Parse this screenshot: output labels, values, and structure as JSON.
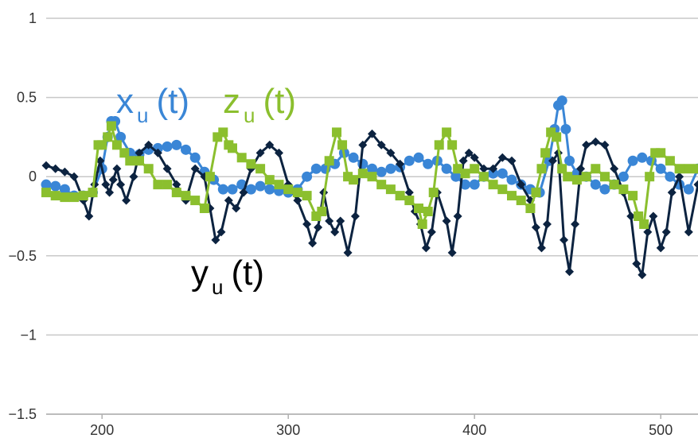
{
  "chart_data": {
    "type": "line",
    "xlim": [
      170,
      520
    ],
    "ylim": [
      -1.5,
      1
    ],
    "x_ticks": [
      200,
      300,
      400,
      500
    ],
    "y_ticks": [
      1,
      0.5,
      0,
      -0.5,
      -1,
      -1.5
    ],
    "x_tick_labels": [
      "200",
      "300",
      "400",
      "500"
    ],
    "y_tick_labels": [
      "1",
      "0.5",
      "0",
      "−0.5",
      "−1",
      "−1.5"
    ],
    "grid": "horizontal",
    "series": [
      {
        "name_main": "x",
        "name_sub": "u",
        "name_tail": "(t)",
        "color": "#3a86d6",
        "marker": "circle",
        "x": [
          170,
          175,
          180,
          185,
          190,
          195,
          200,
          203,
          205,
          207,
          210,
          215,
          220,
          225,
          230,
          235,
          240,
          245,
          250,
          255,
          260,
          265,
          270,
          275,
          280,
          285,
          290,
          295,
          300,
          305,
          310,
          315,
          320,
          325,
          330,
          335,
          340,
          345,
          350,
          355,
          360,
          365,
          370,
          375,
          380,
          385,
          390,
          395,
          400,
          405,
          410,
          415,
          420,
          425,
          430,
          435,
          440,
          443,
          445,
          447,
          449,
          451,
          455,
          460,
          465,
          470,
          475,
          480,
          485,
          490,
          495,
          500,
          505,
          510,
          515,
          520
        ],
        "y": [
          -0.05,
          -0.06,
          -0.08,
          -0.12,
          -0.12,
          -0.1,
          0.05,
          0.25,
          0.35,
          0.35,
          0.25,
          0.15,
          0.14,
          0.17,
          0.18,
          0.19,
          0.2,
          0.17,
          0.12,
          0.03,
          -0.02,
          -0.08,
          -0.08,
          -0.05,
          -0.08,
          -0.06,
          -0.08,
          -0.09,
          -0.1,
          -0.08,
          0.0,
          0.05,
          0.05,
          0.08,
          0.15,
          0.12,
          0.08,
          0.05,
          0.03,
          0.05,
          0.06,
          0.1,
          0.12,
          0.08,
          0.1,
          0.05,
          0.0,
          -0.05,
          -0.05,
          0.0,
          0.02,
          0.02,
          -0.02,
          -0.05,
          -0.08,
          -0.1,
          0.1,
          0.3,
          0.45,
          0.48,
          0.3,
          0.1,
          0.02,
          0.0,
          -0.05,
          -0.08,
          -0.05,
          0.0,
          0.1,
          0.12,
          0.1,
          0.05,
          0.0,
          -0.05,
          -0.08,
          0.05
        ]
      },
      {
        "name_main": "y",
        "name_sub": "u",
        "name_tail": "(t)",
        "color": "#0c2340",
        "marker": "diamond",
        "x": [
          170,
          175,
          180,
          185,
          190,
          193,
          196,
          199,
          202,
          204,
          206,
          208,
          210,
          213,
          217,
          220,
          225,
          230,
          235,
          240,
          245,
          250,
          255,
          258,
          261,
          264,
          268,
          272,
          276,
          280,
          285,
          290,
          295,
          300,
          305,
          310,
          313,
          316,
          319,
          322,
          325,
          328,
          332,
          336,
          340,
          345,
          350,
          355,
          360,
          365,
          368,
          371,
          374,
          377,
          380,
          385,
          388,
          391,
          394,
          397,
          400,
          405,
          410,
          415,
          420,
          425,
          430,
          433,
          436,
          439,
          442,
          445,
          448,
          451,
          454,
          457,
          460,
          465,
          470,
          475,
          480,
          484,
          487,
          490,
          493,
          496,
          500,
          503,
          506,
          510,
          515,
          520
        ],
        "y": [
          0.07,
          0.05,
          0.03,
          0.0,
          -0.15,
          -0.25,
          -0.05,
          0.1,
          -0.05,
          -0.1,
          -0.02,
          0.05,
          -0.05,
          -0.15,
          0.0,
          0.15,
          0.2,
          0.15,
          0.05,
          -0.05,
          -0.15,
          0.05,
          0.0,
          -0.2,
          -0.4,
          -0.35,
          -0.15,
          -0.2,
          -0.1,
          0.05,
          0.15,
          0.2,
          0.15,
          -0.05,
          -0.15,
          -0.3,
          -0.42,
          -0.32,
          -0.1,
          -0.28,
          -0.35,
          -0.28,
          -0.48,
          -0.25,
          0.2,
          0.27,
          0.2,
          0.15,
          0.08,
          -0.1,
          -0.22,
          -0.3,
          -0.45,
          -0.35,
          -0.1,
          -0.28,
          -0.48,
          -0.25,
          0.1,
          0.15,
          0.12,
          0.05,
          0.05,
          0.12,
          0.1,
          -0.05,
          -0.15,
          -0.32,
          -0.45,
          -0.3,
          0.1,
          0.15,
          -0.4,
          -0.6,
          -0.3,
          0.05,
          0.2,
          0.22,
          0.2,
          0.05,
          -0.1,
          -0.25,
          -0.55,
          -0.62,
          -0.35,
          -0.25,
          -0.45,
          -0.35,
          -0.1,
          0.0,
          -0.35,
          -0.05
        ]
      },
      {
        "name_main": "z",
        "name_sub": "u",
        "name_tail": "(t)",
        "color": "#8bbf2e",
        "marker": "square",
        "x": [
          170,
          175,
          180,
          185,
          190,
          195,
          198,
          200,
          203,
          205,
          208,
          212,
          215,
          220,
          225,
          230,
          235,
          240,
          245,
          250,
          255,
          258,
          262,
          265,
          268,
          270,
          275,
          280,
          285,
          290,
          295,
          300,
          305,
          310,
          315,
          318,
          322,
          326,
          329,
          332,
          335,
          340,
          345,
          350,
          355,
          360,
          365,
          370,
          372,
          375,
          378,
          381,
          385,
          388,
          391,
          395,
          400,
          405,
          410,
          415,
          420,
          425,
          430,
          433,
          436,
          438,
          441,
          444,
          447,
          450,
          455,
          460,
          465,
          470,
          475,
          480,
          485,
          488,
          491,
          494,
          497,
          500,
          505,
          510,
          515,
          520
        ],
        "y": [
          -0.1,
          -0.12,
          -0.13,
          -0.13,
          -0.12,
          -0.1,
          0.2,
          0.2,
          0.25,
          0.32,
          0.2,
          0.15,
          0.1,
          0.1,
          0.05,
          -0.05,
          -0.05,
          -0.1,
          -0.12,
          -0.15,
          -0.2,
          0.0,
          0.25,
          0.28,
          0.2,
          0.18,
          0.12,
          0.08,
          0.05,
          -0.02,
          -0.05,
          -0.08,
          -0.1,
          -0.12,
          -0.25,
          -0.22,
          0.1,
          0.28,
          0.2,
          0.0,
          -0.02,
          0.02,
          0.0,
          -0.05,
          -0.08,
          -0.12,
          -0.15,
          -0.2,
          -0.3,
          -0.22,
          -0.1,
          0.2,
          0.28,
          0.2,
          0.05,
          0.02,
          0.05,
          0.0,
          -0.05,
          -0.08,
          -0.12,
          -0.15,
          -0.2,
          -0.1,
          0.05,
          0.15,
          0.28,
          0.25,
          0.05,
          0.0,
          -0.02,
          0.0,
          0.05,
          0.0,
          -0.05,
          -0.08,
          -0.12,
          -0.25,
          -0.3,
          0.0,
          0.15,
          0.15,
          0.1,
          0.05,
          0.05,
          0.05
        ]
      }
    ]
  }
}
